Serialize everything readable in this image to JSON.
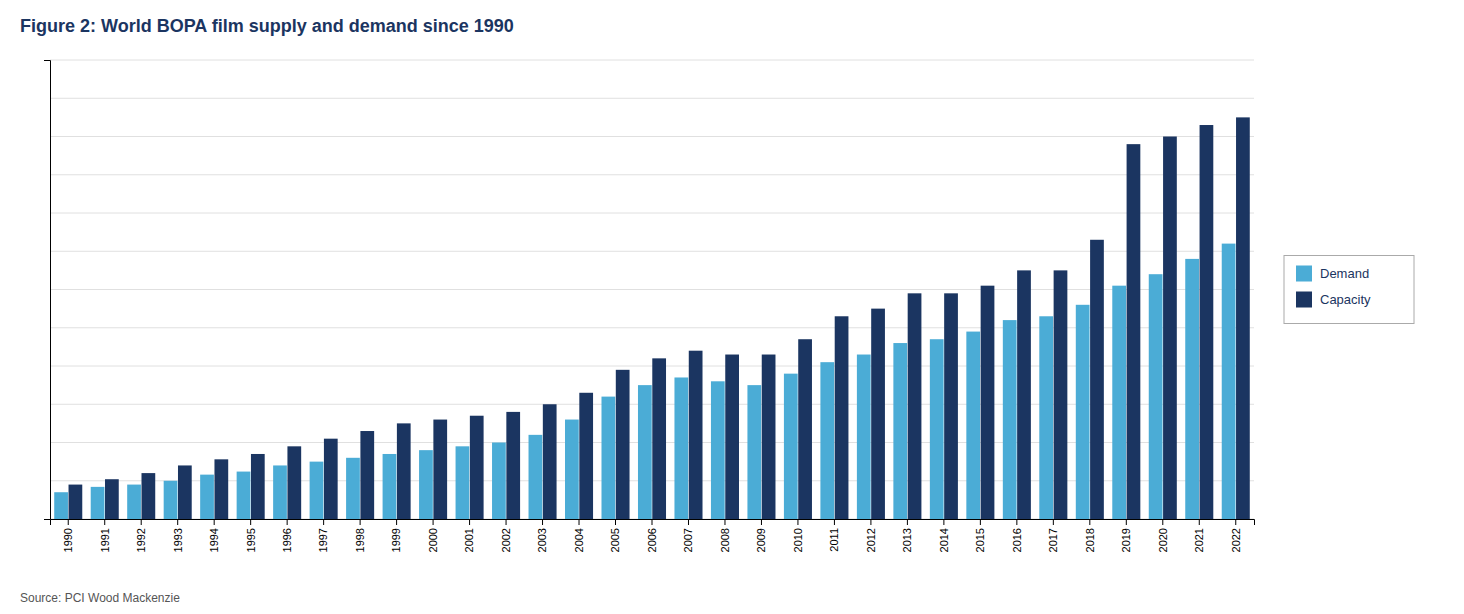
{
  "chart_data": {
    "type": "bar",
    "title": "Figure 2:  World BOPA film supply and demand since 1990",
    "source": "Source: PCI Wood Mackenzie",
    "categories": [
      "1990",
      "1991",
      "1992",
      "1993",
      "1994",
      "1995",
      "1996",
      "1997",
      "1998",
      "1999",
      "2000",
      "2001",
      "2002",
      "2003",
      "2004",
      "2005",
      "2006",
      "2007",
      "2008",
      "2009",
      "2010",
      "2011",
      "2012",
      "2013",
      "2014",
      "2015",
      "2016",
      "2017",
      "2018",
      "2019",
      "2020",
      "2021",
      "2022"
    ],
    "series": [
      {
        "name": "Demand",
        "color": "#4BACD6",
        "values": [
          3.5,
          4.2,
          4.5,
          5.0,
          5.8,
          6.2,
          7.0,
          7.5,
          8.0,
          8.5,
          9.0,
          9.5,
          10.0,
          11.0,
          13.0,
          16.0,
          17.5,
          18.5,
          18.0,
          17.5,
          19.0,
          20.5,
          21.5,
          23.0,
          23.5,
          24.5,
          26.0,
          26.5,
          28.0,
          30.5,
          32.0,
          34.0,
          36.0
        ]
      },
      {
        "name": "Capacity",
        "color": "#1B3561",
        "values": [
          4.5,
          5.2,
          6.0,
          7.0,
          7.8,
          8.5,
          9.5,
          10.5,
          11.5,
          12.5,
          13.0,
          13.5,
          14.0,
          15.0,
          16.5,
          19.5,
          21.0,
          22.0,
          21.5,
          21.5,
          23.5,
          26.5,
          27.5,
          29.5,
          29.5,
          30.5,
          32.5,
          32.5,
          36.5,
          49.0,
          50.0,
          51.5,
          52.5
        ]
      }
    ],
    "ylim": [
      0,
      60
    ],
    "yticks": [
      0,
      5,
      10,
      15,
      20,
      25,
      30,
      35,
      40,
      45,
      50,
      55,
      60
    ],
    "grid": true,
    "legend": "right",
    "tick_labels": "x"
  }
}
